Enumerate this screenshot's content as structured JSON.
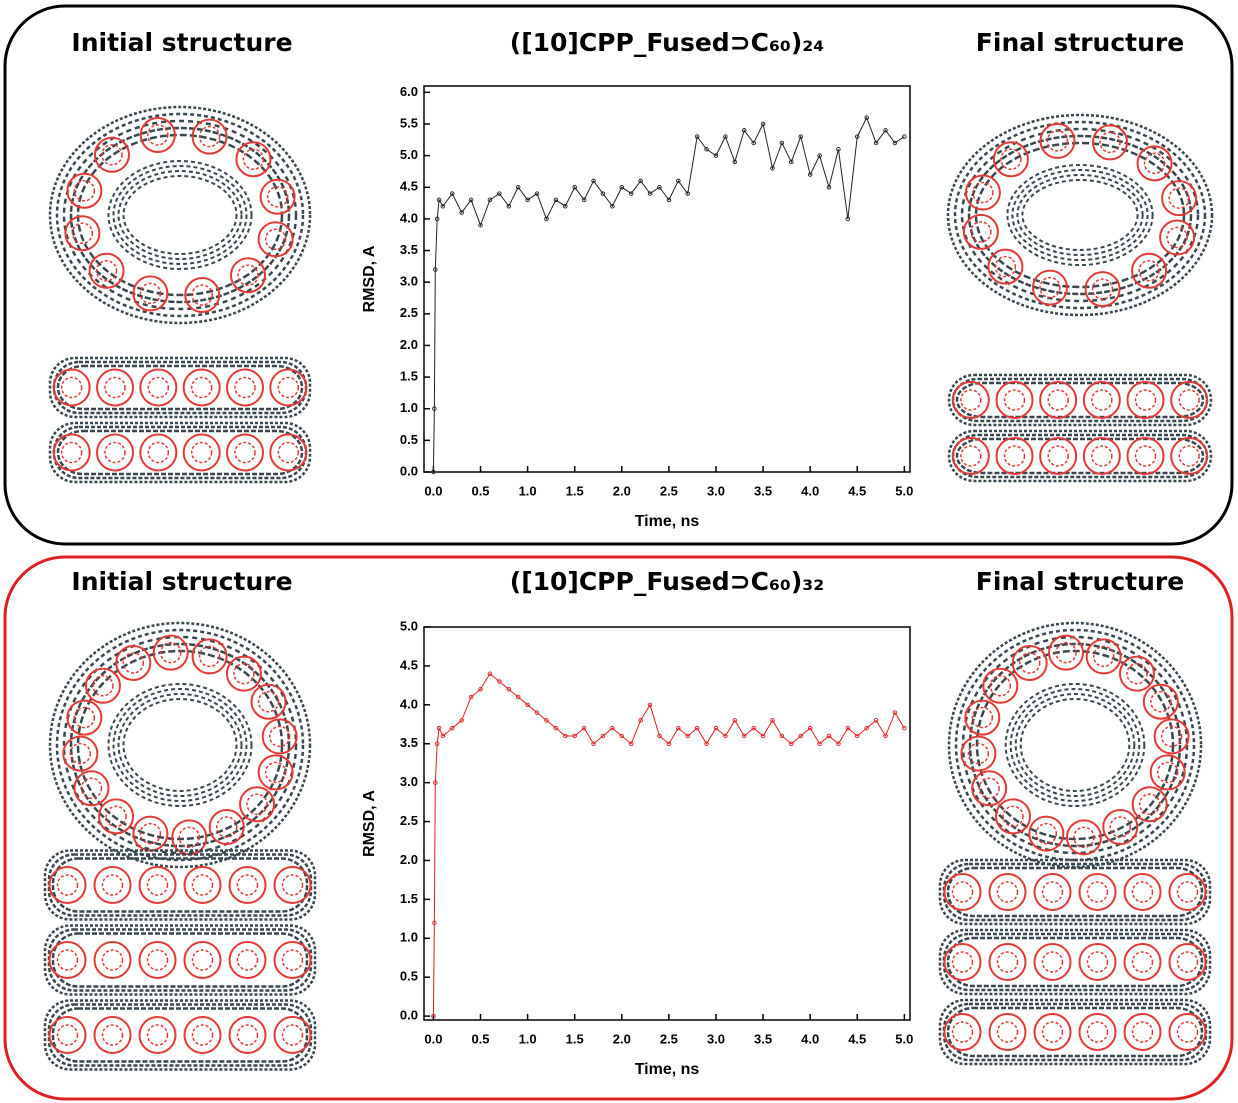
{
  "panels": [
    {
      "left_label": "Initial structure",
      "right_label": "Final structure"
    },
    {
      "left_label": "Initial structure",
      "right_label": "Final structure"
    }
  ],
  "chart_data": [
    {
      "type": "line",
      "title": "([10]CPP_Fused⊃C₆₀)₂₄",
      "x_label": "Time, ns",
      "y_label": "RMSD, A",
      "xlim": [
        -0.1,
        5.06
      ],
      "ylim": [
        0,
        6.1
      ],
      "xticks": [
        {
          "value": 0,
          "label": "0.0"
        },
        {
          "value": 0.5,
          "label": "0.5"
        },
        {
          "value": 1,
          "label": "1.0"
        },
        {
          "value": 1.5,
          "label": "1.5"
        },
        {
          "value": 2,
          "label": "2.0"
        },
        {
          "value": 2.5,
          "label": "2.5"
        },
        {
          "value": 3,
          "label": "3.0"
        },
        {
          "value": 3.5,
          "label": "3.5"
        },
        {
          "value": 4,
          "label": "4.0"
        },
        {
          "value": 4.5,
          "label": "4.5"
        },
        {
          "value": 5,
          "label": "5.0"
        }
      ],
      "yticks": [
        {
          "value": 0,
          "label": "0.0"
        },
        {
          "value": 0.5,
          "label": "0.5"
        },
        {
          "value": 1,
          "label": "1.0"
        },
        {
          "value": 1.5,
          "label": "1.5"
        },
        {
          "value": 2,
          "label": "2.0"
        },
        {
          "value": 2.5,
          "label": "2.5"
        },
        {
          "value": 3,
          "label": "3.0"
        },
        {
          "value": 3.5,
          "label": "3.5"
        },
        {
          "value": 4,
          "label": "4.0"
        },
        {
          "value": 4.5,
          "label": "4.5"
        },
        {
          "value": 5,
          "label": "5.0"
        },
        {
          "value": 5.5,
          "label": "5.5"
        },
        {
          "value": 6,
          "label": "6.0"
        }
      ],
      "x": [
        0,
        0.01,
        0.02,
        0.04,
        0.06,
        0.1,
        0.2,
        0.3,
        0.4,
        0.5,
        0.6,
        0.7,
        0.8,
        0.9,
        1.0,
        1.1,
        1.2,
        1.3,
        1.4,
        1.5,
        1.6,
        1.7,
        1.8,
        1.9,
        2.0,
        2.1,
        2.2,
        2.3,
        2.4,
        2.5,
        2.6,
        2.7,
        2.8,
        2.9,
        3.0,
        3.1,
        3.2,
        3.3,
        3.4,
        3.5,
        3.6,
        3.7,
        3.8,
        3.9,
        4.0,
        4.1,
        4.2,
        4.3,
        4.4,
        4.5,
        4.6,
        4.7,
        4.8,
        4.9,
        5.0
      ],
      "series": [
        {
          "color": "#222222",
          "values": [
            0,
            1.0,
            3.2,
            4.0,
            4.3,
            4.2,
            4.4,
            4.1,
            4.3,
            3.9,
            4.3,
            4.4,
            4.2,
            4.5,
            4.3,
            4.4,
            4.0,
            4.3,
            4.2,
            4.5,
            4.3,
            4.6,
            4.4,
            4.2,
            4.5,
            4.4,
            4.6,
            4.4,
            4.5,
            4.3,
            4.6,
            4.4,
            5.3,
            5.1,
            5.0,
            5.3,
            4.9,
            5.4,
            5.2,
            5.5,
            4.8,
            5.2,
            4.9,
            5.3,
            4.7,
            5.0,
            4.5,
            5.1,
            4.0,
            5.3,
            5.6,
            5.2,
            5.4,
            5.2,
            5.3
          ]
        }
      ]
    },
    {
      "type": "line",
      "title": "([10]CPP_Fused⊃C₆₀)₃₂",
      "x_label": "Time, ns",
      "y_label": "RMSD, A",
      "xlim": [
        -0.1,
        5.06
      ],
      "ylim": [
        -0.05,
        5
      ],
      "xticks": [
        {
          "value": 0,
          "label": "0.0"
        },
        {
          "value": 0.5,
          "label": "0.5"
        },
        {
          "value": 1,
          "label": "1.0"
        },
        {
          "value": 1.5,
          "label": "1.5"
        },
        {
          "value": 2,
          "label": "2.0"
        },
        {
          "value": 2.5,
          "label": "2.5"
        },
        {
          "value": 3,
          "label": "3.0"
        },
        {
          "value": 3.5,
          "label": "3.5"
        },
        {
          "value": 4,
          "label": "4.0"
        },
        {
          "value": 4.5,
          "label": "4.5"
        },
        {
          "value": 5,
          "label": "5.0"
        }
      ],
      "yticks": [
        {
          "value": 0,
          "label": "0.0"
        },
        {
          "value": 0.5,
          "label": "0.5"
        },
        {
          "value": 1,
          "label": "1.0"
        },
        {
          "value": 1.5,
          "label": "1.5"
        },
        {
          "value": 2,
          "label": "2.0"
        },
        {
          "value": 2.5,
          "label": "2.5"
        },
        {
          "value": 3,
          "label": "3.0"
        },
        {
          "value": 3.5,
          "label": "3.5"
        },
        {
          "value": 4,
          "label": "4.0"
        },
        {
          "value": 4.5,
          "label": "4.5"
        },
        {
          "value": 5,
          "label": "5.0"
        }
      ],
      "x": [
        0,
        0.01,
        0.02,
        0.04,
        0.06,
        0.1,
        0.2,
        0.3,
        0.4,
        0.5,
        0.6,
        0.7,
        0.8,
        0.9,
        1.0,
        1.1,
        1.2,
        1.3,
        1.4,
        1.5,
        1.6,
        1.7,
        1.8,
        1.9,
        2.0,
        2.1,
        2.2,
        2.3,
        2.4,
        2.5,
        2.6,
        2.7,
        2.8,
        2.9,
        3.0,
        3.1,
        3.2,
        3.3,
        3.4,
        3.5,
        3.6,
        3.7,
        3.8,
        3.9,
        4.0,
        4.1,
        4.2,
        4.3,
        4.4,
        4.5,
        4.6,
        4.7,
        4.8,
        4.9,
        5.0
      ],
      "series": [
        {
          "color": "#e02020",
          "values": [
            0,
            1.2,
            3.0,
            3.5,
            3.7,
            3.6,
            3.7,
            3.8,
            4.1,
            4.2,
            4.4,
            4.3,
            4.2,
            4.1,
            4.0,
            3.9,
            3.8,
            3.7,
            3.6,
            3.6,
            3.7,
            3.5,
            3.6,
            3.7,
            3.6,
            3.5,
            3.8,
            4.0,
            3.6,
            3.5,
            3.7,
            3.6,
            3.7,
            3.5,
            3.7,
            3.6,
            3.8,
            3.6,
            3.7,
            3.6,
            3.8,
            3.6,
            3.5,
            3.6,
            3.7,
            3.5,
            3.6,
            3.5,
            3.7,
            3.6,
            3.7,
            3.8,
            3.6,
            3.9,
            3.7
          ]
        }
      ]
    }
  ]
}
